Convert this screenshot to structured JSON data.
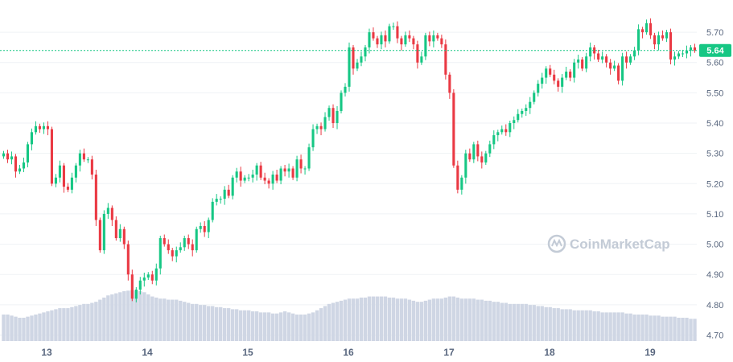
{
  "chart_data": {
    "type": "candlestick",
    "x_ticks": [
      "13",
      "14",
      "15",
      "16",
      "17",
      "18",
      "19"
    ],
    "y_ticks": [
      4.7,
      4.8,
      4.9,
      5.0,
      5.1,
      5.2,
      5.3,
      5.4,
      5.5,
      5.6,
      5.7
    ],
    "ylim": [
      4.68,
      5.78
    ],
    "current_price": 5.64,
    "current_price_label": "5.64",
    "watermark": "CoinMarketCap",
    "grid": true,
    "colors": {
      "up": "#16c784",
      "down": "#ea3943",
      "volume": "#cfd6e4",
      "grid": "#eff2f5",
      "axis_text": "#58667e"
    },
    "series_close": [
      5.3,
      5.28,
      5.29,
      5.24,
      5.25,
      5.27,
      5.33,
      5.37,
      5.39,
      5.38,
      5.39,
      5.38,
      5.2,
      5.22,
      5.26,
      5.19,
      5.18,
      5.22,
      5.26,
      5.3,
      5.28,
      5.28,
      5.23,
      5.08,
      4.98,
      5.1,
      5.12,
      5.08,
      5.02,
      5.05,
      5.0,
      4.9,
      4.82,
      4.85,
      4.88,
      4.89,
      4.9,
      4.88,
      4.92,
      5.02,
      5.0,
      4.98,
      4.96,
      4.98,
      4.99,
      5.02,
      5.0,
      4.98,
      5.05,
      5.06,
      5.04,
      5.08,
      5.14,
      5.15,
      5.15,
      5.18,
      5.16,
      5.22,
      5.24,
      5.21,
      5.22,
      5.22,
      5.23,
      5.26,
      5.22,
      5.21,
      5.2,
      5.23,
      5.21,
      5.25,
      5.24,
      5.25,
      5.22,
      5.28,
      5.25,
      5.25,
      5.32,
      5.38,
      5.39,
      5.38,
      5.42,
      5.45,
      5.4,
      5.44,
      5.5,
      5.52,
      5.65,
      5.58,
      5.6,
      5.62,
      5.65,
      5.7,
      5.68,
      5.66,
      5.69,
      5.67,
      5.72,
      5.72,
      5.68,
      5.66,
      5.69,
      5.68,
      5.66,
      5.6,
      5.62,
      5.69,
      5.67,
      5.69,
      5.68,
      5.66,
      5.56,
      5.5,
      5.26,
      5.18,
      5.22,
      5.3,
      5.28,
      5.33,
      5.29,
      5.27,
      5.3,
      5.33,
      5.36,
      5.37,
      5.38,
      5.37,
      5.4,
      5.41,
      5.43,
      5.44,
      5.45,
      5.47,
      5.5,
      5.53,
      5.55,
      5.58,
      5.56,
      5.54,
      5.52,
      5.55,
      5.57,
      5.55,
      5.6,
      5.61,
      5.58,
      5.62,
      5.65,
      5.63,
      5.61,
      5.62,
      5.6,
      5.58,
      5.59,
      5.54,
      5.62,
      5.6,
      5.62,
      5.64,
      5.71,
      5.7,
      5.73,
      5.69,
      5.66,
      5.69,
      5.68,
      5.7,
      5.61,
      5.62,
      5.63,
      5.63,
      5.64,
      5.65,
      5.64
    ],
    "volume_relative": [
      0.5,
      0.5,
      0.48,
      0.46,
      0.44,
      0.44,
      0.46,
      0.48,
      0.5,
      0.52,
      0.54,
      0.56,
      0.58,
      0.6,
      0.62,
      0.62,
      0.62,
      0.64,
      0.66,
      0.68,
      0.7,
      0.7,
      0.72,
      0.74,
      0.78,
      0.82,
      0.86,
      0.88,
      0.9,
      0.92,
      0.94,
      0.95,
      0.96,
      0.95,
      0.94,
      0.92,
      0.88,
      0.84,
      0.82,
      0.8,
      0.8,
      0.78,
      0.78,
      0.78,
      0.76,
      0.74,
      0.72,
      0.7,
      0.7,
      0.68,
      0.68,
      0.66,
      0.66,
      0.64,
      0.64,
      0.62,
      0.62,
      0.6,
      0.6,
      0.58,
      0.58,
      0.58,
      0.56,
      0.56,
      0.54,
      0.54,
      0.54,
      0.52,
      0.52,
      0.54,
      0.56,
      0.54,
      0.52,
      0.5,
      0.5,
      0.5,
      0.52,
      0.54,
      0.58,
      0.62,
      0.66,
      0.7,
      0.72,
      0.74,
      0.76,
      0.78,
      0.8,
      0.8,
      0.8,
      0.82,
      0.82,
      0.84,
      0.84,
      0.84,
      0.84,
      0.84,
      0.82,
      0.82,
      0.8,
      0.8,
      0.8,
      0.78,
      0.76,
      0.74,
      0.74,
      0.76,
      0.78,
      0.8,
      0.8,
      0.8,
      0.82,
      0.84,
      0.84,
      0.82,
      0.8,
      0.8,
      0.8,
      0.8,
      0.78,
      0.78,
      0.76,
      0.76,
      0.74,
      0.74,
      0.72,
      0.72,
      0.7,
      0.7,
      0.7,
      0.7,
      0.7,
      0.68,
      0.68,
      0.66,
      0.66,
      0.64,
      0.64,
      0.62,
      0.62,
      0.6,
      0.6,
      0.6,
      0.58,
      0.58,
      0.58,
      0.58,
      0.58,
      0.56,
      0.56,
      0.54,
      0.54,
      0.54,
      0.54,
      0.54,
      0.54,
      0.52,
      0.52,
      0.5,
      0.5,
      0.5,
      0.5,
      0.48,
      0.48,
      0.48,
      0.46,
      0.46,
      0.46,
      0.46,
      0.44,
      0.44,
      0.44,
      0.42,
      0.42
    ]
  }
}
